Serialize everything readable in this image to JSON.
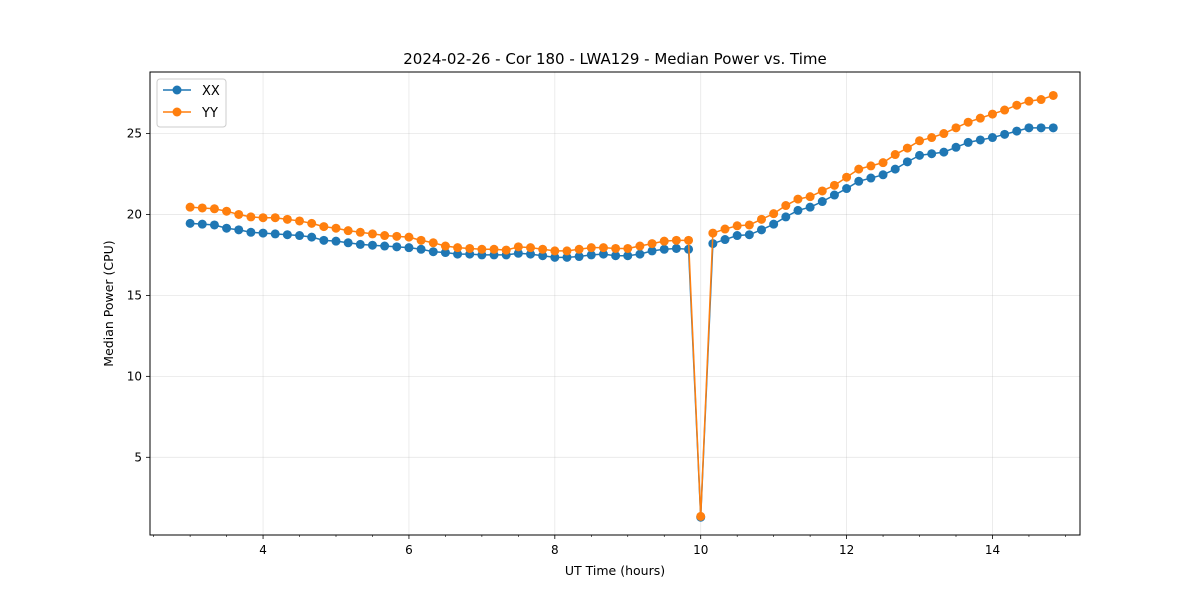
{
  "chart_data": {
    "type": "line",
    "title": "2024-02-26 - Cor 180 - LWA129 - Median Power vs. Time",
    "xlabel": "UT Time (hours)",
    "ylabel": "Median Power (CPU)",
    "xlim": [
      2.45,
      15.2
    ],
    "ylim": [
      0.2,
      28.8
    ],
    "xticks": [
      4,
      6,
      8,
      10,
      12,
      14
    ],
    "xtick_labels": [
      "4",
      "6",
      "8",
      "10",
      "12",
      "14"
    ],
    "xminor_step": 0.5,
    "yticks": [
      5,
      10,
      15,
      20,
      25
    ],
    "ytick_labels": [
      "5",
      "10",
      "15",
      "20",
      "25"
    ],
    "grid": true,
    "legend": "top-left",
    "x": [
      3.0,
      3.1667,
      3.3333,
      3.5,
      3.6667,
      3.8333,
      4.0,
      4.1667,
      4.3333,
      4.5,
      4.6667,
      4.8333,
      5.0,
      5.1667,
      5.3333,
      5.5,
      5.6667,
      5.8333,
      6.0,
      6.1667,
      6.3333,
      6.5,
      6.6667,
      6.8333,
      7.0,
      7.1667,
      7.3333,
      7.5,
      7.6667,
      7.8333,
      8.0,
      8.1667,
      8.3333,
      8.5,
      8.6667,
      8.8333,
      9.0,
      9.1667,
      9.3333,
      9.5,
      9.6667,
      9.8333,
      10.0,
      10.1667,
      10.3333,
      10.5,
      10.6667,
      10.8333,
      11.0,
      11.1667,
      11.3333,
      11.5,
      11.6667,
      11.8333,
      12.0,
      12.1667,
      12.3333,
      12.5,
      12.6667,
      12.8333,
      13.0,
      13.1667,
      13.3333,
      13.5,
      13.6667,
      13.8333,
      14.0,
      14.1667,
      14.3333,
      14.5,
      14.6667,
      14.8333
    ],
    "series": [
      {
        "name": "XX",
        "color": "#1f77b4",
        "values": [
          19.45,
          19.4,
          19.35,
          19.15,
          19.05,
          18.9,
          18.85,
          18.8,
          18.75,
          18.7,
          18.6,
          18.4,
          18.35,
          18.25,
          18.15,
          18.1,
          18.05,
          18.0,
          17.95,
          17.85,
          17.7,
          17.65,
          17.55,
          17.55,
          17.5,
          17.5,
          17.5,
          17.6,
          17.55,
          17.45,
          17.35,
          17.35,
          17.4,
          17.5,
          17.55,
          17.45,
          17.45,
          17.55,
          17.75,
          17.85,
          17.9,
          17.85,
          1.3,
          18.2,
          18.45,
          18.7,
          18.75,
          19.05,
          19.4,
          19.85,
          20.25,
          20.45,
          20.8,
          21.2,
          21.6,
          22.05,
          22.25,
          22.45,
          22.8,
          23.25,
          23.65,
          23.75,
          23.85,
          24.15,
          24.45,
          24.6,
          24.75,
          24.95,
          25.15,
          25.35,
          25.35,
          25.35
        ]
      },
      {
        "name": "YY",
        "color": "#ff7f0e",
        "values": [
          20.45,
          20.4,
          20.35,
          20.2,
          20.0,
          19.85,
          19.8,
          19.8,
          19.7,
          19.6,
          19.45,
          19.25,
          19.15,
          19.0,
          18.9,
          18.8,
          18.7,
          18.65,
          18.6,
          18.4,
          18.25,
          18.05,
          17.95,
          17.9,
          17.85,
          17.85,
          17.8,
          18.0,
          17.95,
          17.85,
          17.75,
          17.75,
          17.85,
          17.95,
          17.95,
          17.9,
          17.9,
          18.05,
          18.2,
          18.35,
          18.4,
          18.4,
          1.35,
          18.85,
          19.1,
          19.3,
          19.35,
          19.7,
          20.05,
          20.55,
          20.95,
          21.1,
          21.45,
          21.8,
          22.3,
          22.8,
          23.0,
          23.2,
          23.7,
          24.1,
          24.55,
          24.75,
          25.0,
          25.35,
          25.7,
          25.95,
          26.2,
          26.45,
          26.75,
          27.0,
          27.1,
          27.35
        ]
      }
    ]
  }
}
